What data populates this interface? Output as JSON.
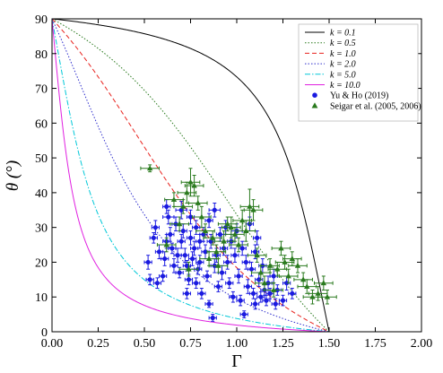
{
  "chart_data": {
    "type": "scatter",
    "xlabel": "Γ",
    "ylabel": "θ (°)",
    "xlim": [
      0.0,
      2.0
    ],
    "ylim": [
      0,
      90
    ],
    "xticks": [
      "0.00",
      "0.25",
      "0.50",
      "0.75",
      "1.00",
      "1.25",
      "1.50",
      "1.75",
      "2.00"
    ],
    "yticks": [
      "0",
      "10",
      "20",
      "30",
      "40",
      "50",
      "60",
      "70",
      "80",
      "90"
    ],
    "legend_position": "top-right",
    "curves": [
      {
        "name": "k = 0.1",
        "k": 0.1,
        "color": "#000000",
        "dash": "solid"
      },
      {
        "name": "k = 0.5",
        "k": 0.5,
        "color": "#2a7a1e",
        "dash": "dotted"
      },
      {
        "name": "k = 1.0",
        "k": 1.0,
        "color": "#e8231e",
        "dash": "dashed"
      },
      {
        "name": "k = 2.0",
        "k": 2.0,
        "color": "#2d2dcc",
        "dash": "dotted"
      },
      {
        "name": "k = 5.0",
        "k": 5.0,
        "color": "#00c8d8",
        "dash": "dashdot"
      },
      {
        "name": "k = 10.0",
        "k": 10.0,
        "color": "#e020e0",
        "dash": "solid"
      }
    ],
    "series": [
      {
        "name": "Yu & Ho (2019)",
        "marker": "circle",
        "color": "#1a1ae0",
        "points": [
          [
            0.52,
            20,
            0.02,
            2
          ],
          [
            0.53,
            15,
            0.02,
            1.5
          ],
          [
            0.55,
            27,
            0.02,
            1.5
          ],
          [
            0.56,
            30,
            0.02,
            2
          ],
          [
            0.57,
            14,
            0.02,
            1.5
          ],
          [
            0.58,
            23,
            0.02,
            2
          ],
          [
            0.6,
            16,
            0.02,
            1.5
          ],
          [
            0.61,
            21,
            0.02,
            2
          ],
          [
            0.62,
            36,
            0.02,
            2
          ],
          [
            0.62,
            26,
            0.02,
            2
          ],
          [
            0.63,
            33,
            0.03,
            2
          ],
          [
            0.64,
            28,
            0.02,
            2
          ],
          [
            0.65,
            24,
            0.02,
            1.5
          ],
          [
            0.66,
            19,
            0.02,
            2
          ],
          [
            0.67,
            31,
            0.02,
            2
          ],
          [
            0.68,
            22,
            0.02,
            2
          ],
          [
            0.69,
            17,
            0.02,
            1.5
          ],
          [
            0.7,
            26,
            0.02,
            2
          ],
          [
            0.7,
            35,
            0.03,
            2.5
          ],
          [
            0.71,
            29,
            0.02,
            2
          ],
          [
            0.72,
            22,
            0.02,
            2
          ],
          [
            0.73,
            11,
            0.02,
            1.5
          ],
          [
            0.73,
            19,
            0.02,
            1.5
          ],
          [
            0.74,
            15,
            0.02,
            1.5
          ],
          [
            0.75,
            27,
            0.02,
            2
          ],
          [
            0.75,
            33,
            0.02,
            2
          ],
          [
            0.76,
            21,
            0.02,
            2
          ],
          [
            0.77,
            24,
            0.02,
            2
          ],
          [
            0.78,
            14,
            0.02,
            1.5
          ],
          [
            0.78,
            30,
            0.02,
            2
          ],
          [
            0.79,
            18,
            0.02,
            1.5
          ],
          [
            0.8,
            26,
            0.02,
            2
          ],
          [
            0.8,
            20,
            0.02,
            2
          ],
          [
            0.81,
            11,
            0.02,
            1.5
          ],
          [
            0.82,
            28,
            0.02,
            2
          ],
          [
            0.83,
            23,
            0.02,
            2
          ],
          [
            0.84,
            16,
            0.02,
            1.5
          ],
          [
            0.85,
            32,
            0.02,
            2
          ],
          [
            0.85,
            8,
            0.02,
            1
          ],
          [
            0.86,
            26,
            0.02,
            2
          ],
          [
            0.87,
            4,
            0.02,
            1
          ],
          [
            0.88,
            19,
            0.02,
            2
          ],
          [
            0.88,
            35,
            0.03,
            2
          ],
          [
            0.89,
            22,
            0.02,
            2
          ],
          [
            0.9,
            13,
            0.02,
            1.5
          ],
          [
            0.91,
            28,
            0.02,
            2
          ],
          [
            0.92,
            17,
            0.02,
            2
          ],
          [
            0.93,
            24,
            0.02,
            2
          ],
          [
            0.94,
            30,
            0.02,
            2
          ],
          [
            0.95,
            20,
            0.02,
            2
          ],
          [
            0.96,
            14,
            0.02,
            1.5
          ],
          [
            0.97,
            26,
            0.02,
            2
          ],
          [
            0.98,
            10,
            0.02,
            1.5
          ],
          [
            0.99,
            22,
            0.02,
            2
          ],
          [
            1.0,
            29,
            0.03,
            2
          ],
          [
            1.01,
            16,
            0.02,
            2
          ],
          [
            1.02,
            9,
            0.02,
            1.5
          ],
          [
            1.03,
            24,
            0.02,
            2
          ],
          [
            1.04,
            5,
            0.02,
            1
          ],
          [
            1.05,
            20,
            0.02,
            2
          ],
          [
            1.06,
            13,
            0.02,
            2
          ],
          [
            1.07,
            31,
            0.02,
            2
          ],
          [
            1.08,
            18,
            0.02,
            2
          ],
          [
            1.09,
            11,
            0.02,
            1.5
          ],
          [
            1.1,
            23,
            0.02,
            2
          ],
          [
            1.1,
            8,
            0.02,
            1.5
          ],
          [
            1.11,
            27,
            0.02,
            2
          ],
          [
            1.12,
            15,
            0.02,
            2
          ],
          [
            1.13,
            10,
            0.02,
            1.5
          ],
          [
            1.14,
            19,
            0.02,
            2
          ],
          [
            1.15,
            12,
            0.02,
            1.5
          ],
          [
            1.16,
            9,
            0.02,
            1.5
          ],
          [
            1.17,
            14,
            0.02,
            2
          ],
          [
            1.18,
            11,
            0.02,
            1.5
          ],
          [
            1.2,
            16,
            0.02,
            2
          ],
          [
            1.21,
            8,
            0.02,
            1.5
          ],
          [
            1.22,
            12,
            0.02,
            1.5
          ],
          [
            1.25,
            9,
            0.02,
            1.5
          ],
          [
            1.27,
            14,
            0.02,
            2
          ],
          [
            1.3,
            11,
            0.02,
            1.5
          ]
        ]
      },
      {
        "name": "Seigar et al. (2005, 2006)",
        "marker": "triangle",
        "color": "#2a7a1e",
        "points": [
          [
            0.53,
            47,
            0.05,
            1
          ],
          [
            0.62,
            25,
            0.05,
            2
          ],
          [
            0.66,
            38,
            0.05,
            2
          ],
          [
            0.69,
            31,
            0.05,
            2
          ],
          [
            0.71,
            36,
            0.05,
            2
          ],
          [
            0.73,
            40,
            0.05,
            3
          ],
          [
            0.74,
            18,
            0.05,
            2
          ],
          [
            0.75,
            43,
            0.05,
            4
          ],
          [
            0.77,
            42,
            0.05,
            3
          ],
          [
            0.79,
            37,
            0.05,
            2
          ],
          [
            0.81,
            33,
            0.05,
            3
          ],
          [
            0.83,
            29,
            0.05,
            2
          ],
          [
            0.85,
            21,
            0.05,
            2
          ],
          [
            0.87,
            27,
            0.05,
            2
          ],
          [
            0.89,
            23,
            0.05,
            2
          ],
          [
            0.9,
            19,
            0.05,
            2
          ],
          [
            0.93,
            26,
            0.05,
            3
          ],
          [
            0.95,
            31,
            0.05,
            2
          ],
          [
            0.97,
            30,
            0.05,
            3
          ],
          [
            0.99,
            28,
            0.05,
            2
          ],
          [
            1.01,
            25,
            0.05,
            2
          ],
          [
            1.03,
            32,
            0.05,
            3
          ],
          [
            1.05,
            29,
            0.05,
            3
          ],
          [
            1.07,
            36,
            0.05,
            5
          ],
          [
            1.09,
            35,
            0.05,
            3
          ],
          [
            1.11,
            22,
            0.05,
            2
          ],
          [
            1.13,
            17,
            0.05,
            2
          ],
          [
            1.15,
            14,
            0.05,
            2
          ],
          [
            1.18,
            19,
            0.05,
            2
          ],
          [
            1.2,
            12,
            0.05,
            2
          ],
          [
            1.22,
            18,
            0.05,
            2
          ],
          [
            1.24,
            24,
            0.05,
            2
          ],
          [
            1.26,
            20,
            0.05,
            2
          ],
          [
            1.28,
            16,
            0.05,
            2
          ],
          [
            1.3,
            21,
            0.05,
            2
          ],
          [
            1.33,
            19,
            0.05,
            2
          ],
          [
            1.36,
            15,
            0.05,
            2
          ],
          [
            1.38,
            13,
            0.05,
            2
          ],
          [
            1.41,
            10,
            0.05,
            2
          ],
          [
            1.44,
            11,
            0.05,
            2
          ],
          [
            1.47,
            14,
            0.05,
            2
          ],
          [
            1.49,
            10,
            0.05,
            2
          ]
        ]
      }
    ]
  }
}
